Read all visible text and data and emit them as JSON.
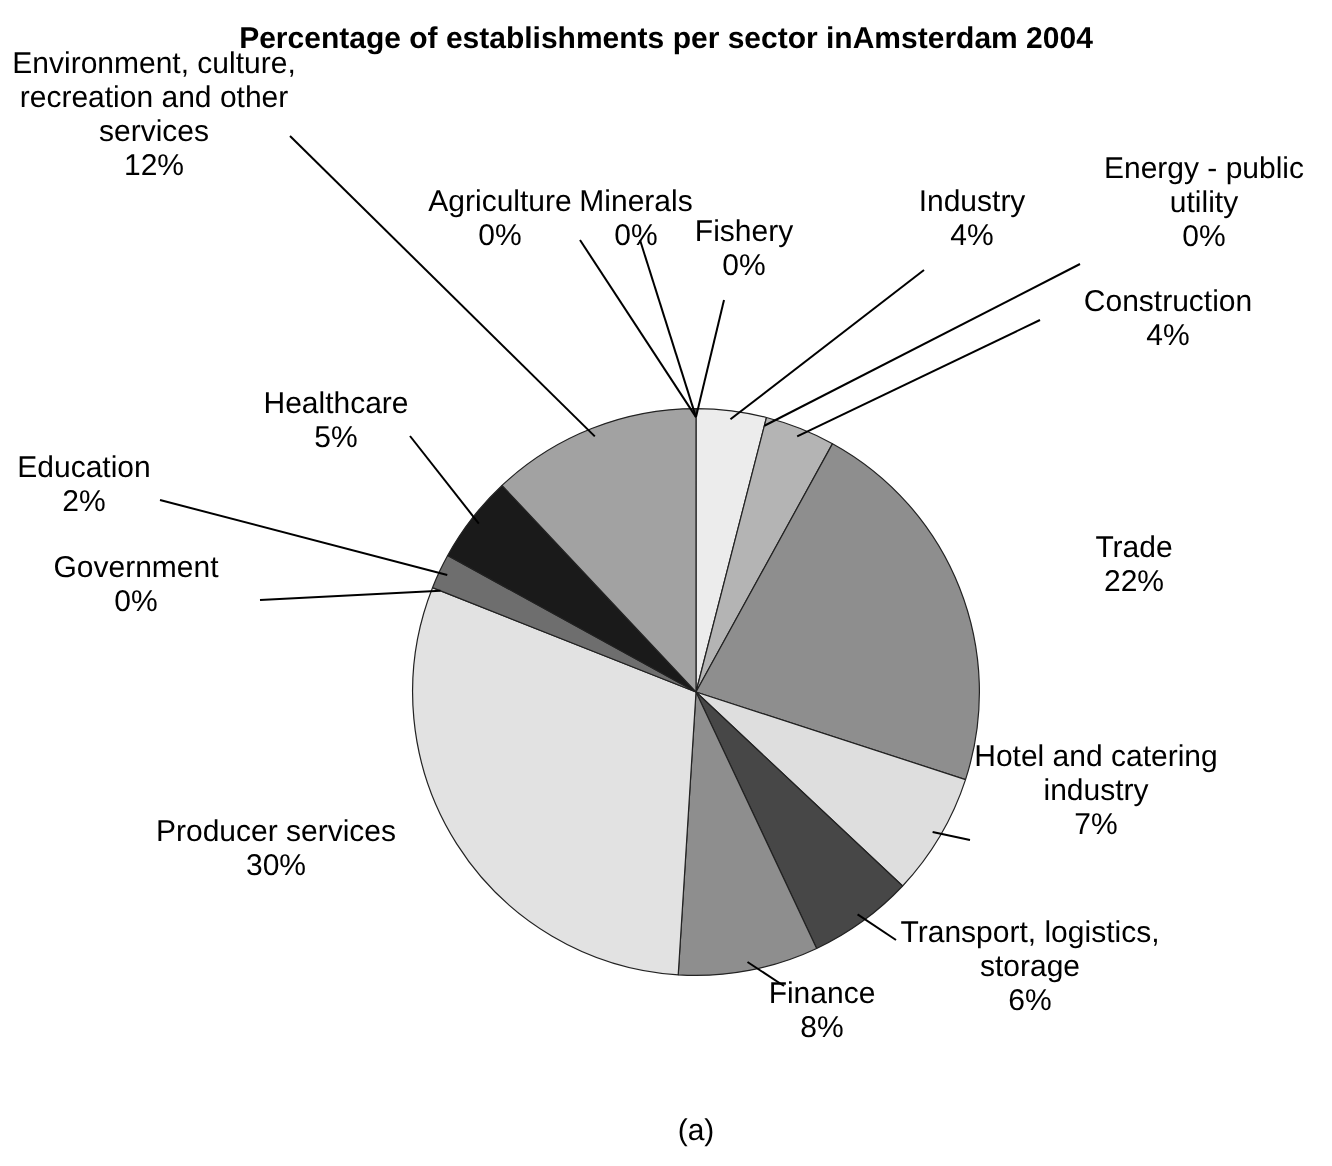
{
  "chart_data": {
    "type": "pie",
    "title": "Percentage of establishments per sector inAmsterdam 2004",
    "categories": [
      "Fishery",
      "Industry",
      "Energy - public utility",
      "Construction",
      "Trade",
      "Hotel and catering industry",
      "Transport, logistics, storage",
      "Finance",
      "Producer services",
      "Government",
      "Education",
      "Healthcare",
      "Environment, culture, recreation and other services",
      "Agriculture",
      "Minerals"
    ],
    "values": [
      0,
      4,
      0,
      4,
      22,
      7,
      6,
      8,
      30,
      0,
      2,
      5,
      12,
      0,
      0
    ],
    "value_labels": [
      "0%",
      "4%",
      "0%",
      "4%",
      "22%",
      "7%",
      "6%",
      "8%",
      "30%",
      "0%",
      "2%",
      "5%",
      "12%",
      "0%",
      "0%"
    ],
    "colors": [
      "#111111",
      "#ececec",
      "#3a3a3a",
      "#b4b4b4",
      "#8e8e8e",
      "#dedede",
      "#474747",
      "#8e8e8e",
      "#e2e2e2",
      "#333333",
      "#6e6e6e",
      "#1a1a1a",
      "#a2a2a2",
      "#555555",
      "#222222"
    ],
    "legend": false,
    "annotations": [
      "(a)"
    ]
  }
}
